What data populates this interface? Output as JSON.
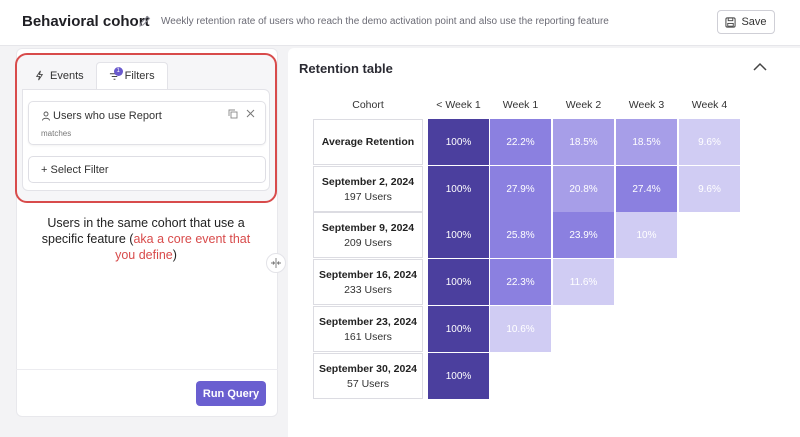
{
  "header": {
    "title": "Behavioral cohort",
    "subtitle": "Weekly retention rate of users who reach the demo activation point and also use the reporting feature",
    "save_label": "Save"
  },
  "left": {
    "tabs": [
      {
        "label": "Events"
      },
      {
        "label": "Filters",
        "badge": "1"
      }
    ],
    "filter": {
      "label": "Users who use Report",
      "sub": "matches"
    },
    "select_filter": "+ Select Filter",
    "annotation": {
      "line1": "Users in the same cohort that use a specific feature (",
      "red": "aka a core event that you define",
      "line2": ")"
    },
    "run_query": "Run Query"
  },
  "retention": {
    "title": "Retention table",
    "headers": [
      "Cohort",
      "< Week 1",
      "Week 1",
      "Week 2",
      "Week 3",
      "Week 4"
    ],
    "rows": [
      {
        "cohort": "Average Retention",
        "users": "",
        "values": [
          "100%",
          "22.2%",
          "18.5%",
          "18.5%",
          "9.6%"
        ]
      },
      {
        "cohort": "September 2, 2024",
        "users": "197 Users",
        "values": [
          "100%",
          "27.9%",
          "20.8%",
          "27.4%",
          "9.6%"
        ]
      },
      {
        "cohort": "September 9, 2024",
        "users": "209 Users",
        "values": [
          "100%",
          "25.8%",
          "23.9%",
          "10%"
        ]
      },
      {
        "cohort": "September 16, 2024",
        "users": "233 Users",
        "values": [
          "100%",
          "22.3%",
          "11.6%"
        ]
      },
      {
        "cohort": "September 23, 2024",
        "users": "161 Users",
        "values": [
          "100%",
          "10.6%"
        ]
      },
      {
        "cohort": "September 30, 2024",
        "users": "57 Users",
        "values": [
          "100%"
        ]
      }
    ],
    "colors": {
      "full": "#4b3f9e",
      "high": "#8b80e0",
      "mid": "#a79ee8",
      "low": "#d0ccf3"
    }
  }
}
